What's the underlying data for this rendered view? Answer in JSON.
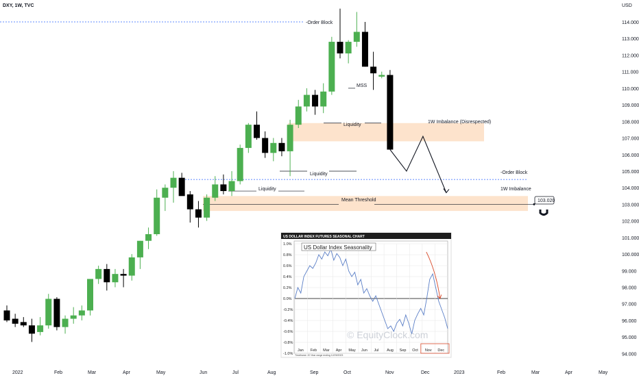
{
  "header": {
    "symbol": "DXY, 1W, TVC"
  },
  "axis": {
    "currency": "USD"
  },
  "colors": {
    "bull": "#4caf50",
    "bear": "#000000",
    "imbalance": "#f7b98b",
    "zone": "#fde3cc",
    "line": "#2962ff",
    "inset_series": "#5b7fc7",
    "inset_arrow": "#d84a2a"
  },
  "chart_data": [
    {
      "type": "candlestick",
      "title": "DXY, 1W, TVC",
      "ylabel": "USD",
      "ylim": [
        93.6,
        115.2
      ],
      "y_ticks": [
        "114.000",
        "113.000",
        "112.000",
        "111.000",
        "110.000",
        "109.000",
        "108.000",
        "107.000",
        "106.000",
        "105.000",
        "104.000",
        "103.000",
        "102.000",
        "101.000",
        "100.000",
        "99.000",
        "98.000",
        "97.000",
        "96.000",
        "95.000",
        "94.000"
      ],
      "x_tick_labels": [
        "2022",
        "Feb",
        "Mar",
        "Apr",
        "May",
        "Jun",
        "Jul",
        "Aug",
        "Sep",
        "Oct",
        "Nov",
        "Dec",
        "2023",
        "Feb",
        "Mar",
        "Apr",
        "May"
      ],
      "candles": [
        {
          "o": 96.6,
          "h": 96.9,
          "l": 95.9,
          "c": 96.0
        },
        {
          "o": 96.1,
          "h": 96.4,
          "l": 95.6,
          "c": 95.8
        },
        {
          "o": 95.9,
          "h": 96.2,
          "l": 95.6,
          "c": 95.7
        },
        {
          "o": 95.7,
          "h": 96.1,
          "l": 94.7,
          "c": 95.2
        },
        {
          "o": 95.3,
          "h": 96.2,
          "l": 95.1,
          "c": 95.7
        },
        {
          "o": 95.7,
          "h": 97.6,
          "l": 95.5,
          "c": 97.3
        },
        {
          "o": 97.3,
          "h": 97.4,
          "l": 95.4,
          "c": 95.6
        },
        {
          "o": 95.6,
          "h": 96.3,
          "l": 95.2,
          "c": 96.1
        },
        {
          "o": 96.1,
          "h": 96.8,
          "l": 95.8,
          "c": 96.3
        },
        {
          "o": 96.3,
          "h": 96.9,
          "l": 96.0,
          "c": 96.6
        },
        {
          "o": 96.6,
          "h": 98.4,
          "l": 96.3,
          "c": 98.5
        },
        {
          "o": 98.5,
          "h": 99.3,
          "l": 98.2,
          "c": 99.1
        },
        {
          "o": 99.1,
          "h": 99.4,
          "l": 97.8,
          "c": 98.3
        },
        {
          "o": 98.3,
          "h": 99.1,
          "l": 98.0,
          "c": 98.8
        },
        {
          "o": 98.8,
          "h": 99.1,
          "l": 98.0,
          "c": 98.7
        },
        {
          "o": 98.7,
          "h": 100.0,
          "l": 98.4,
          "c": 99.8
        },
        {
          "o": 99.8,
          "h": 100.8,
          "l": 99.1,
          "c": 100.8
        },
        {
          "o": 100.8,
          "h": 101.6,
          "l": 100.3,
          "c": 101.2
        },
        {
          "o": 101.2,
          "h": 103.9,
          "l": 101.1,
          "c": 103.4
        },
        {
          "o": 103.4,
          "h": 104.2,
          "l": 102.6,
          "c": 104.0
        },
        {
          "o": 104.0,
          "h": 105.0,
          "l": 103.1,
          "c": 104.6
        },
        {
          "o": 104.6,
          "h": 104.9,
          "l": 103.6,
          "c": 103.5
        },
        {
          "o": 103.6,
          "h": 103.8,
          "l": 101.9,
          "c": 102.7
        },
        {
          "o": 102.7,
          "h": 103.2,
          "l": 101.6,
          "c": 102.2
        },
        {
          "o": 102.2,
          "h": 103.6,
          "l": 102.0,
          "c": 103.4
        },
        {
          "o": 103.4,
          "h": 104.7,
          "l": 103.2,
          "c": 104.2
        },
        {
          "o": 104.2,
          "h": 104.8,
          "l": 103.6,
          "c": 103.8
        },
        {
          "o": 103.8,
          "h": 105.0,
          "l": 103.5,
          "c": 104.4
        },
        {
          "o": 104.4,
          "h": 106.6,
          "l": 104.2,
          "c": 106.4
        },
        {
          "o": 106.4,
          "h": 107.9,
          "l": 106.1,
          "c": 107.8
        },
        {
          "o": 107.8,
          "h": 108.6,
          "l": 106.9,
          "c": 107.0
        },
        {
          "o": 107.0,
          "h": 107.4,
          "l": 105.8,
          "c": 106.1
        },
        {
          "o": 106.1,
          "h": 107.0,
          "l": 105.6,
          "c": 106.7
        },
        {
          "o": 106.7,
          "h": 107.0,
          "l": 105.9,
          "c": 106.2
        },
        {
          "o": 106.2,
          "h": 108.1,
          "l": 104.7,
          "c": 107.8
        },
        {
          "o": 107.8,
          "h": 109.3,
          "l": 107.6,
          "c": 108.9
        },
        {
          "o": 108.9,
          "h": 110.0,
          "l": 108.6,
          "c": 109.6
        },
        {
          "o": 109.6,
          "h": 109.9,
          "l": 108.4,
          "c": 108.9
        },
        {
          "o": 108.9,
          "h": 110.3,
          "l": 108.5,
          "c": 109.8
        },
        {
          "o": 109.8,
          "h": 113.1,
          "l": 109.6,
          "c": 112.8
        },
        {
          "o": 112.8,
          "h": 114.8,
          "l": 111.8,
          "c": 112.1
        },
        {
          "o": 112.1,
          "h": 112.9,
          "l": 111.5,
          "c": 112.8
        },
        {
          "o": 112.8,
          "h": 114.6,
          "l": 112.5,
          "c": 113.4
        },
        {
          "o": 113.4,
          "h": 114.0,
          "l": 111.3,
          "c": 111.3
        },
        {
          "o": 111.3,
          "h": 112.2,
          "l": 109.9,
          "c": 110.9
        },
        {
          "o": 110.7,
          "h": 111.0,
          "l": 110.6,
          "c": 110.8
        },
        {
          "o": 110.8,
          "h": 111.1,
          "l": 106.3,
          "c": 106.3
        }
      ],
      "levels": {
        "order_block_top": 114.0,
        "liquidity_1": 107.9,
        "liquidity_2": 105.0,
        "order_block_2": 104.5,
        "liquidity_3": 103.8,
        "mean_threshold": 103.0
      },
      "zones": [
        {
          "name": "1W Imbalance (Disrespected)",
          "from": 106.8,
          "to": 107.9
        },
        {
          "name": "1W Imbalance",
          "from": 102.6,
          "to": 103.5
        }
      ],
      "price_tag": "103.020",
      "projection_path": [
        [
          106.3,
          0
        ],
        [
          105.0,
          1
        ],
        [
          107.1,
          2
        ],
        [
          103.7,
          3
        ]
      ]
    },
    {
      "type": "line",
      "title": "US Dollar Index Seasonality",
      "header": "US DOLLAR INDEX FUTURES SEASONAL CHART",
      "y_ticks": [
        "1.0%",
        "0.8%",
        "0.6%",
        "0.4%",
        "0.2%",
        "0.0%",
        "-0.2%",
        "-0.4%",
        "-0.6%",
        "-0.8%",
        "-1.0%"
      ],
      "ylim": [
        -1.0,
        1.0
      ],
      "months": [
        "Jan",
        "Feb",
        "Mar",
        "Apr",
        "May",
        "Jun",
        "Jul",
        "Aug",
        "Sep",
        "Oct",
        "Nov",
        "Dec"
      ],
      "values": [
        0.0,
        0.2,
        0.1,
        0.4,
        0.5,
        0.6,
        0.55,
        0.65,
        0.8,
        0.72,
        0.85,
        0.78,
        0.9,
        0.7,
        0.82,
        0.75,
        0.6,
        0.72,
        0.5,
        0.4,
        0.48,
        0.25,
        0.35,
        0.1,
        0.18,
        0.05,
        -0.05,
        0.05,
        -0.1,
        -0.25,
        -0.4,
        -0.55,
        -0.5,
        -0.6,
        -0.45,
        -0.38,
        -0.5,
        -0.3,
        -0.45,
        -0.65,
        -0.4,
        -0.28,
        -0.18,
        -0.3,
        0.0,
        0.35,
        0.45,
        0.2,
        -0.05,
        -0.2,
        -0.35,
        -0.55
      ],
      "watermark": "© EquityClock.com",
      "footnote": "Timeframe: 20 Year range ending 12/29/2023"
    }
  ],
  "annotations": {
    "order_block_top": "-Order Block",
    "mss": "MSS",
    "liquidity_a": "Liquidity",
    "imbalance_disrespected": "1W Imbalance (Disrespected)",
    "liquidity_b": "Liquidity",
    "order_block_2": "-Order Block",
    "liquidity_c": "Liquidity",
    "imbalance": "1W Imbalance",
    "mean_threshold": "Mean Threshold"
  }
}
